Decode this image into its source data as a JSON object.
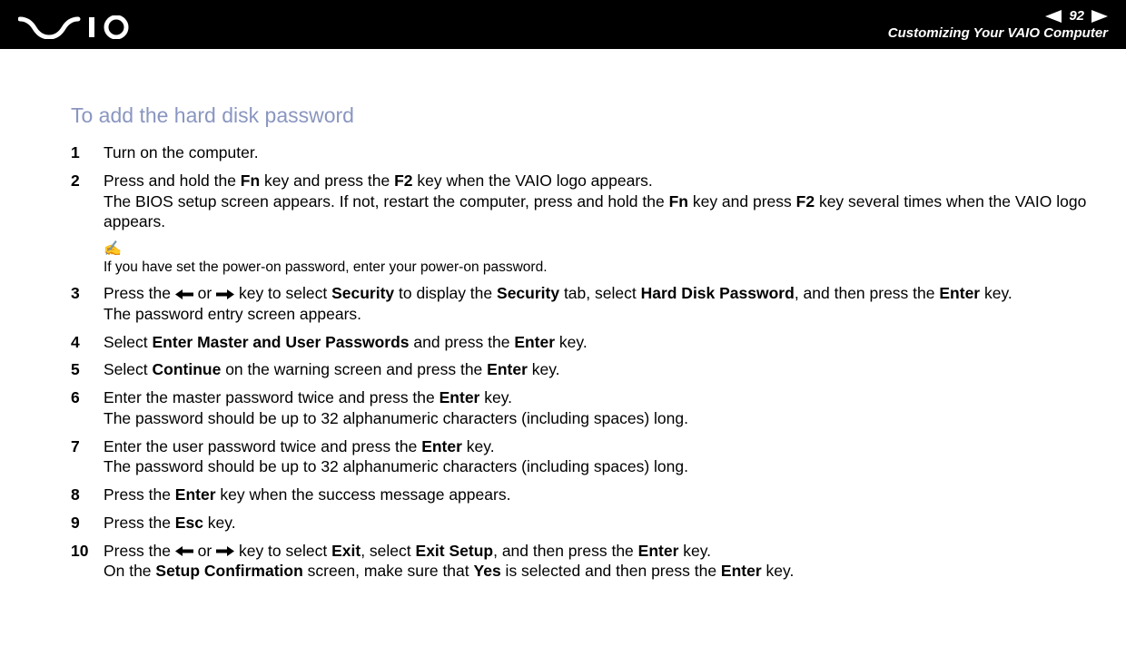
{
  "header": {
    "page_number": "92",
    "section": "Customizing Your VAIO Computer"
  },
  "title": "To add the hard disk password",
  "steps": [
    {
      "num": "1",
      "body_html": "Turn on the computer."
    },
    {
      "num": "2",
      "body_html": "Press and hold the <b>Fn</b> key and press the <b>F2</b> key when the VAIO logo appears.<br>The BIOS setup screen appears. If not, restart the computer, press and hold the <b>Fn</b> key and press <b>F2</b> key several times when the VAIO logo appears."
    }
  ],
  "note": {
    "text": "If you have set the power-on password, enter your power-on password."
  },
  "steps2": [
    {
      "num": "3",
      "body_html": "Press the {LARR} or {RARR} key to select <b>Security</b> to display the <b>Security</b> tab, select <b>Hard Disk Password</b>, and then press the <b>Enter</b> key.<br>The password entry screen appears."
    },
    {
      "num": "4",
      "body_html": "Select <b>Enter Master and User Passwords</b> and press the <b>Enter</b> key."
    },
    {
      "num": "5",
      "body_html": "Select <b>Continue</b> on the warning screen and press the <b>Enter</b> key."
    },
    {
      "num": "6",
      "body_html": "Enter the master password twice and press the <b>Enter</b> key.<br>The password should be up to 32 alphanumeric characters (including spaces) long."
    },
    {
      "num": "7",
      "body_html": "Enter the user password twice and press the <b>Enter</b> key.<br>The password should be up to 32 alphanumeric characters (including spaces) long."
    },
    {
      "num": "8",
      "body_html": "Press the <b>Enter</b> key when the success message appears."
    },
    {
      "num": "9",
      "body_html": "Press the <b>Esc</b> key."
    },
    {
      "num": "10",
      "body_html": "Press the {LARR} or {RARR} key to select <b>Exit</b>, select <b>Exit Setup</b>, and then press the <b>Enter</b> key.<br>On the <b>Setup Confirmation</b> screen, make sure that <b>Yes</b> is selected and then press the <b>Enter</b> key."
    }
  ],
  "colors": {
    "header_bg": "#000000",
    "title_color": "#8a96c0",
    "text_color": "#000000"
  }
}
